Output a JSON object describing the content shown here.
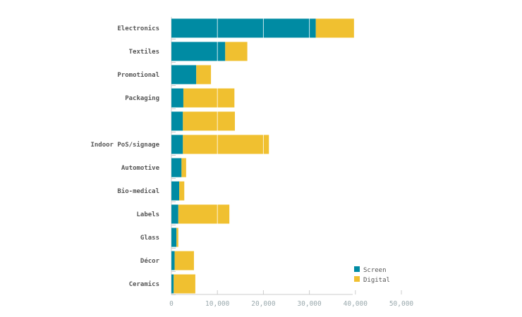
{
  "chart_data": {
    "type": "bar",
    "orientation": "horizontal",
    "stacked": true,
    "categories": [
      "Electronics",
      "Textiles",
      "Promotional",
      "Packaging",
      "",
      "Indoor PoS/signage",
      "Automotive",
      "Bio-medical",
      "Labels",
      "Glass",
      "Décor",
      "Ceramics"
    ],
    "series": [
      {
        "name": "Screen",
        "color": "#008ba3",
        "values": [
          31400,
          11700,
          5400,
          2600,
          2500,
          2500,
          2200,
          1700,
          1500,
          1100,
          700,
          500
        ]
      },
      {
        "name": "Digital",
        "color": "#f0c030",
        "values": [
          8300,
          4800,
          3200,
          11100,
          11300,
          18700,
          1000,
          1100,
          11100,
          400,
          4200,
          4700
        ]
      }
    ],
    "xlim": [
      0,
      50000
    ],
    "xticks": [
      0,
      10000,
      20000,
      30000,
      40000,
      50000
    ],
    "xtick_labels": [
      "0",
      "10,000",
      "20,000",
      "30,000",
      "40,000",
      "50,000"
    ],
    "grid": "vertical white lines over bars",
    "legend": "bottom-right"
  }
}
